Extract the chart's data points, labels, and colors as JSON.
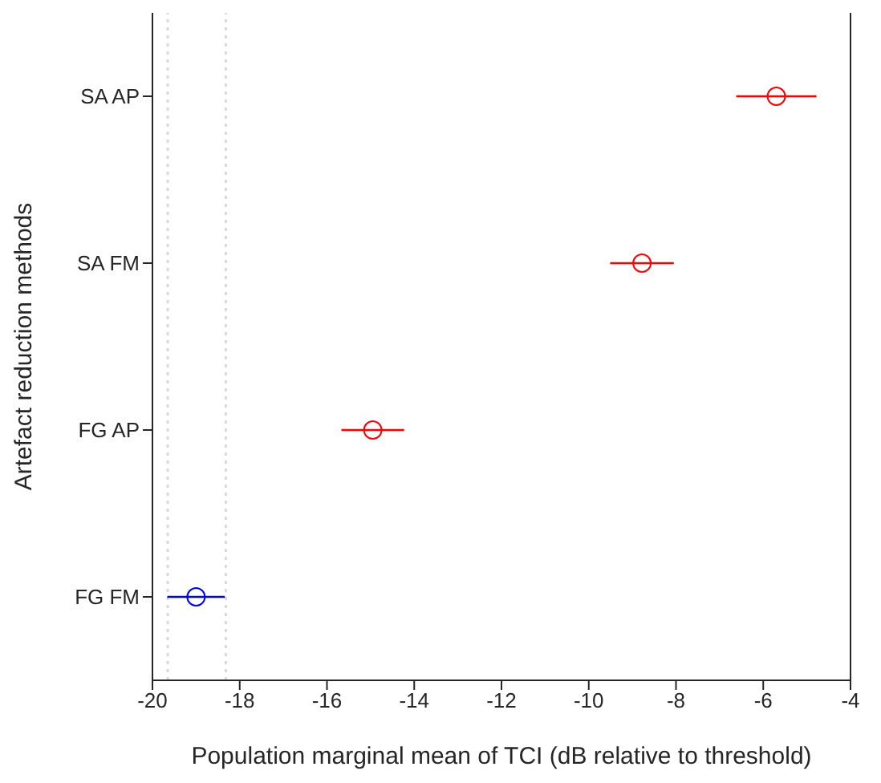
{
  "chart_data": {
    "type": "scatter",
    "orientation": "horizontal",
    "xlabel": "Population marginal mean of TCI (dB relative to threshold)",
    "ylabel": "Artefact reduction methods",
    "categories": [
      "SA AP",
      "SA FM",
      "FG AP",
      "FG FM"
    ],
    "values": [
      -5.7,
      -8.78,
      -14.95,
      -19.0
    ],
    "errors": [
      0.92,
      0.73,
      0.72,
      0.66
    ],
    "colors": [
      "#ff0000",
      "#ff0000",
      "#ff0000",
      "#0000ff"
    ],
    "marker": "circle",
    "grid": false,
    "legend": false,
    "xlim": [
      -20,
      -4
    ],
    "xticks": [
      -20,
      -18,
      -16,
      -14,
      -12,
      -10,
      -8,
      -6,
      -4
    ],
    "ref_lines": [
      {
        "axis": "x",
        "value": -19.65,
        "color": "#d9d9d9",
        "line_style": "dotted"
      },
      {
        "axis": "x",
        "value": -18.32,
        "color": "#d9d9d9",
        "line_style": "dotted"
      }
    ]
  }
}
